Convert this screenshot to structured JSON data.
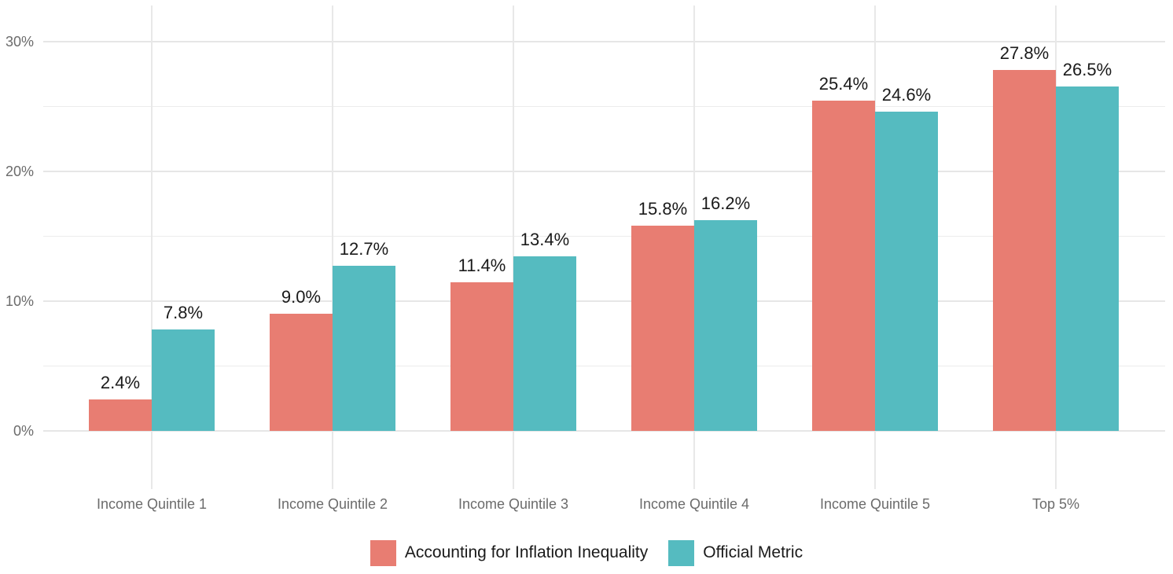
{
  "chart_data": {
    "type": "bar",
    "grouped": true,
    "title": "",
    "xlabel": "",
    "ylabel": "",
    "categories": [
      "Income Quintile 1",
      "Income Quintile 2",
      "Income Quintile 3",
      "Income Quintile 4",
      "Income Quintile 5",
      "Top 5%"
    ],
    "series": [
      {
        "name": "Accounting for Inflation Inequality",
        "color": "#E87D72",
        "values": [
          2.4,
          9.0,
          11.4,
          15.8,
          25.4,
          27.8
        ],
        "value_labels": [
          "2.4%",
          "9.0%",
          "11.4%",
          "15.8%",
          "25.4%",
          "27.8%"
        ]
      },
      {
        "name": "Official Metric",
        "color": "#55BBC0",
        "values": [
          7.8,
          12.7,
          13.4,
          16.2,
          24.6,
          26.5
        ],
        "value_labels": [
          "7.8%",
          "12.7%",
          "13.4%",
          "16.2%",
          "24.6%",
          "26.5%"
        ]
      }
    ],
    "y_axis": {
      "ticks_major": [
        0,
        10,
        20,
        30
      ],
      "tick_labels": [
        "0%",
        "10%",
        "20%",
        "30%"
      ],
      "ticks_minor": [
        5,
        15,
        25
      ],
      "range": [
        -4.5,
        32.8
      ]
    },
    "grid": true,
    "legend_position": "bottom",
    "colors": {
      "background": "#FFFFFF",
      "grid_major": "#E6E6E6",
      "grid_minor": "#ECECEC",
      "axis_text": "#6B6B6B",
      "value_label_text": "#1A1A1A"
    }
  }
}
